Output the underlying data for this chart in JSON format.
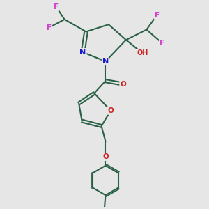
{
  "background_color": "#e6e6e6",
  "bond_color": "#2a6045",
  "bond_width": 1.5,
  "atom_colors": {
    "F": "#cc44cc",
    "N": "#1a1acc",
    "O": "#cc2222",
    "C": "#2a6045"
  },
  "figsize": [
    3.0,
    3.0
  ],
  "dpi": 100,
  "xlim": [
    0,
    10
  ],
  "ylim": [
    0,
    10
  ]
}
